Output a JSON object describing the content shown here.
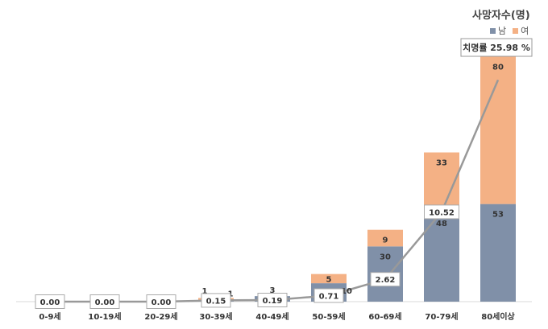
{
  "legend": {
    "title": "사망자수(명)",
    "male_label": "남",
    "female_label": "여"
  },
  "annotation": "치명률 25.98 %",
  "colors": {
    "male": "#8090A8",
    "female": "#F4B185",
    "line": "#999999"
  },
  "chart_data": {
    "type": "bar",
    "stacked": true,
    "categories": [
      "0-9세",
      "10-19세",
      "20-29세",
      "30-39세",
      "40-49세",
      "50-59세",
      "60-69세",
      "70-79세",
      "80세이상"
    ],
    "series": [
      {
        "name": "남",
        "values": [
          0,
          0,
          0,
          1,
          3,
          10,
          30,
          48,
          53
        ]
      },
      {
        "name": "여",
        "values": [
          0,
          0,
          0,
          1,
          0,
          5,
          9,
          33,
          80
        ]
      }
    ],
    "bar_labels": {
      "male": [
        "",
        "",
        "",
        "1",
        "3",
        "10",
        "30",
        "48",
        "53"
      ],
      "female": [
        "",
        "",
        "",
        "1",
        "",
        "5",
        "9",
        "33",
        "80"
      ]
    },
    "line": {
      "name": "치명률",
      "values": [
        0.0,
        0.0,
        0.0,
        0.15,
        0.19,
        0.71,
        2.62,
        10.52,
        25.98
      ],
      "labels": [
        "0.00",
        "0.00",
        "0.00",
        "0.15",
        "0.19",
        "0.71",
        "2.62",
        "10.52",
        ""
      ]
    },
    "ylim": [
      0,
      135
    ],
    "line_ylim": [
      0,
      28
    ],
    "legend_position": "top-right"
  }
}
